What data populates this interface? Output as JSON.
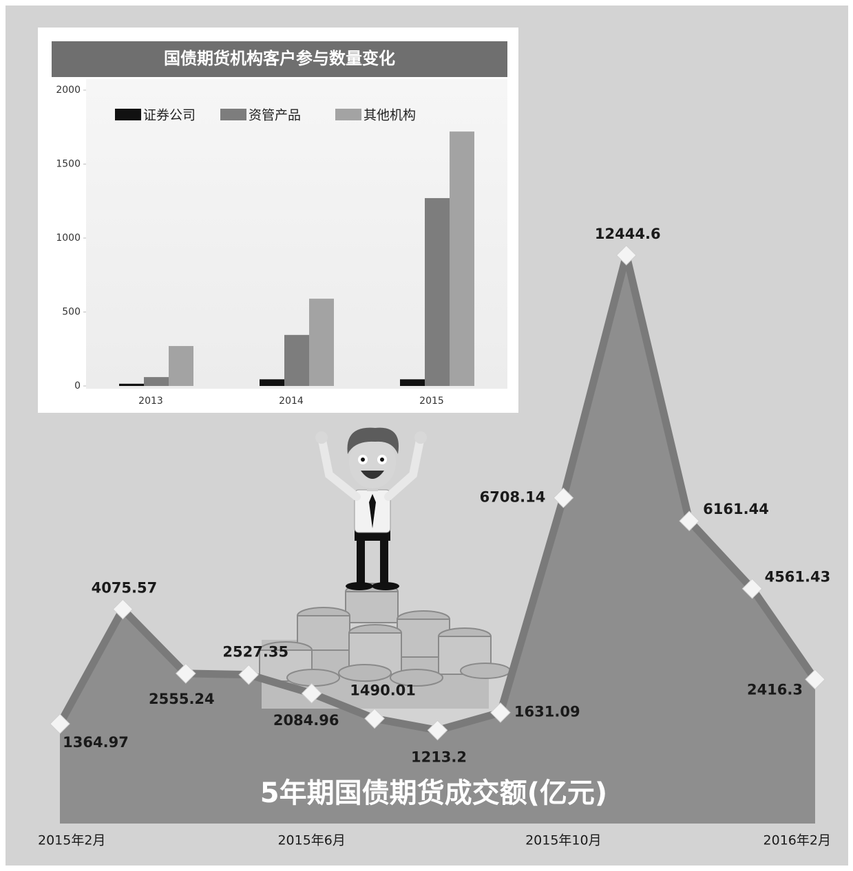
{
  "chart_data": [
    {
      "type": "area",
      "title": "5年期国债期货成交额(亿元)",
      "categories": [
        "2015年2月",
        null,
        null,
        null,
        "2015年6月",
        null,
        null,
        null,
        "2015年10月",
        null,
        null,
        null,
        "2016年2月"
      ],
      "values": [
        1364.97,
        4075.57,
        2555.24,
        2527.35,
        2084.96,
        1490.01,
        1213.2,
        1631.09,
        6708.14,
        12444.6,
        6161.44,
        4561.43,
        2416.3
      ],
      "color": "#8e8e8e",
      "line_color": "#7a7a7a",
      "marker_color": "#f4f4f4"
    },
    {
      "type": "bar",
      "title": "国债期货机构客户参与数量变化",
      "categories": [
        "2013",
        "2014",
        "2015"
      ],
      "series": [
        {
          "name": "证券公司",
          "color": "#111111",
          "values": [
            15,
            45,
            45
          ]
        },
        {
          "name": "资管产品",
          "color": "#7d7d7d",
          "values": [
            60,
            345,
            1270
          ]
        },
        {
          "name": "其他机构",
          "color": "#a3a3a3",
          "values": [
            270,
            590,
            1720
          ]
        }
      ],
      "ylim": [
        0,
        2000
      ],
      "yticks": [
        0,
        500,
        1000,
        1500,
        2000
      ]
    }
  ]
}
